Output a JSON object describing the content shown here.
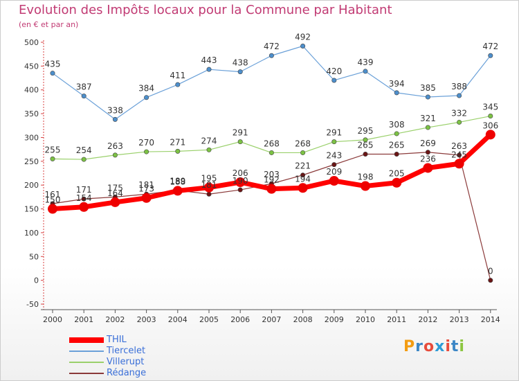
{
  "title": "Evolution des Impôts locaux pour la Commune par Habitant",
  "subtitle": "(en € et par an)",
  "logo": {
    "letters": [
      "P",
      "r",
      "o",
      "x",
      "i",
      "t",
      "i"
    ],
    "colors": [
      "#f39c12",
      "#3b86c6",
      "#e74c3c",
      "#2e9bd6",
      "#e84c3d",
      "#3b86c6",
      "#8cc63f"
    ]
  },
  "chart_data": {
    "type": "line",
    "title": "Evolution des Impôts locaux pour la Commune par Habitant",
    "subtitle": "(en € et par an)",
    "x": [
      "2000",
      "2001",
      "2002",
      "2003",
      "2004",
      "2005",
      "2006",
      "2007",
      "2008",
      "2009",
      "2010",
      "2011",
      "2012",
      "2013",
      "2014"
    ],
    "ylim": [
      -50,
      500
    ],
    "yticks": [
      -50,
      0,
      50,
      100,
      150,
      200,
      250,
      300,
      350,
      400,
      450,
      500
    ],
    "grid": false,
    "legend_position": "bottom-left",
    "series": [
      {
        "name": "Tiercelet",
        "color": "#6aa0d8",
        "marker": "#4d8fcc",
        "width": 1.2,
        "marker_size": 3.2,
        "values": [
          435,
          387,
          338,
          384,
          411,
          443,
          438,
          472,
          492,
          420,
          439,
          394,
          385,
          388,
          472
        ]
      },
      {
        "name": "Villerupt",
        "color": "#9ad06b",
        "marker": "#7cc244",
        "width": 1.2,
        "marker_size": 3.2,
        "values": [
          255,
          254,
          263,
          270,
          271,
          274,
          291,
          268,
          268,
          291,
          295,
          308,
          321,
          332,
          345
        ]
      },
      {
        "name": "Rédange",
        "color": "#8b3a3a",
        "marker": "#6b1515",
        "width": 1.2,
        "marker_size": 3.2,
        "values": [
          161,
          171,
          175,
          181,
          189,
          181,
          190,
          203,
          221,
          243,
          265,
          265,
          269,
          263,
          0
        ]
      },
      {
        "name": "THIL",
        "color": "#ff0000",
        "marker": "#ee0000",
        "width": 7,
        "marker_size": 7,
        "values": [
          150,
          154,
          164,
          173,
          188,
          195,
          206,
          192,
          194,
          209,
          198,
          205,
          236,
          245,
          306
        ]
      }
    ],
    "data_labels": {
      "Tiercelet": [
        "435",
        "387",
        "338",
        "384",
        "411",
        "443",
        "438",
        "472",
        "492",
        "420",
        "439",
        "394",
        "385",
        "388",
        "472"
      ],
      "Villerupt": [
        "255",
        "254",
        "263",
        "270",
        "271",
        "274",
        "291",
        "268",
        "268",
        "291",
        "295",
        "308",
        "321",
        "332",
        "345"
      ],
      "Rédange": [
        "161",
        "171",
        "175",
        "181",
        "189",
        "181",
        "190",
        "203",
        "221",
        "243",
        "265",
        "265",
        "269",
        "263",
        "0"
      ],
      "THIL": [
        "150",
        "154",
        "164",
        "173",
        "188",
        "195",
        "206",
        "192",
        "194",
        "209",
        "198",
        "205",
        "236",
        "245",
        "306"
      ]
    },
    "legend": [
      {
        "name": "THIL",
        "color": "#ff0000",
        "text_color": "#3a6fd8",
        "thick": true
      },
      {
        "name": "Tiercelet",
        "color": "#6aa0d8",
        "text_color": "#3a6fd8",
        "thick": false
      },
      {
        "name": "Villerupt",
        "color": "#9ad06b",
        "text_color": "#3a6fd8",
        "thick": false
      },
      {
        "name": "Rédange",
        "color": "#8b3a3a",
        "text_color": "#3a6fd8",
        "thick": false
      }
    ]
  }
}
